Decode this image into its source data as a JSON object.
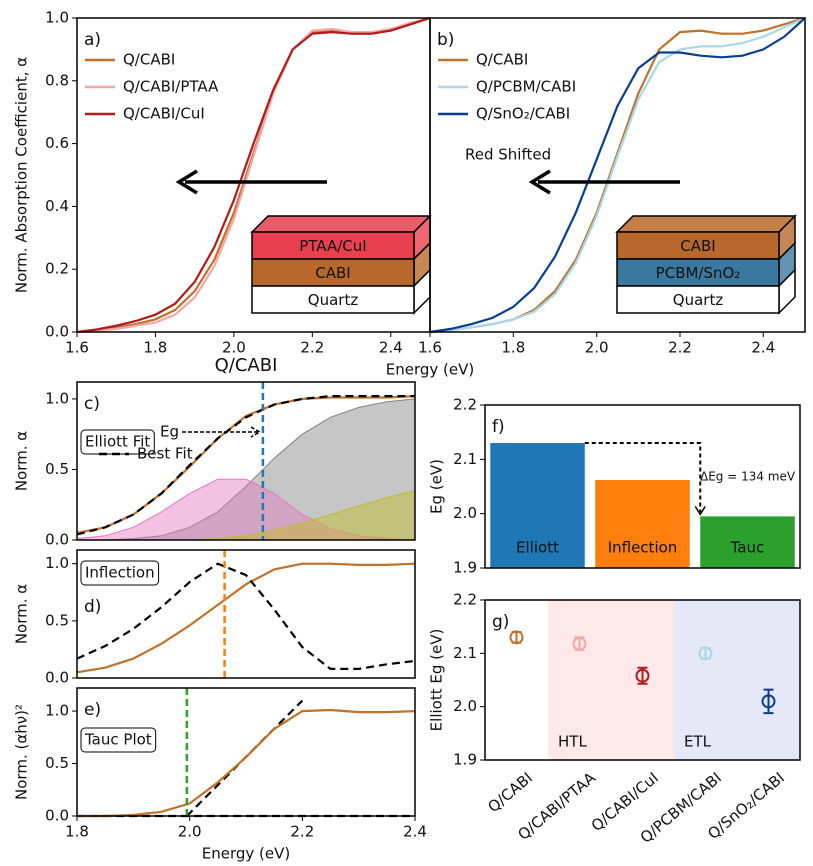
{
  "chart_data": [
    {
      "type": "line",
      "panel_label": "a)",
      "ylabel": "Norm. Absorption Coefficient, α",
      "xlabel": "Energy (eV)",
      "xlim": [
        1.6,
        2.5
      ],
      "ylim": [
        0,
        1
      ],
      "xticks": [
        1.6,
        1.8,
        {
          "value": 2,
          "label": "2.0"
        },
        2.2,
        2.4
      ],
      "yticks": [
        {
          "value": 0,
          "label": "0.0"
        },
        0.2,
        0.4,
        0.6,
        0.8,
        {
          "value": 1,
          "label": "1.0"
        }
      ],
      "legend": "upper left",
      "x": [
        1.6,
        1.65,
        1.7,
        1.75,
        1.8,
        1.85,
        1.9,
        1.95,
        2.0,
        2.05,
        2.1,
        2.15,
        2.2,
        2.25,
        2.3,
        2.35,
        2.4,
        2.45,
        2.5
      ],
      "series": [
        {
          "name": "Q/CABI",
          "color": "#c0712a",
          "values": [
            0,
            0.005,
            0.015,
            0.025,
            0.04,
            0.07,
            0.13,
            0.23,
            0.38,
            0.57,
            0.76,
            0.9,
            0.955,
            0.96,
            0.95,
            0.95,
            0.96,
            0.98,
            1.0
          ]
        },
        {
          "name": "Q/CABI/PTAA",
          "color": "#f0a8a8",
          "values": [
            0,
            0.004,
            0.01,
            0.02,
            0.03,
            0.055,
            0.11,
            0.21,
            0.36,
            0.56,
            0.76,
            0.9,
            0.96,
            0.965,
            0.955,
            0.955,
            0.965,
            0.985,
            1.0
          ]
        },
        {
          "name": "Q/CABI/CuI",
          "color": "#b21a1a",
          "values": [
            0,
            0.008,
            0.02,
            0.035,
            0.055,
            0.09,
            0.16,
            0.27,
            0.42,
            0.6,
            0.77,
            0.9,
            0.95,
            0.955,
            0.95,
            0.95,
            0.96,
            0.98,
            1.0
          ]
        }
      ],
      "inset": [
        "PTAA/CuI",
        "CABI",
        "Quartz"
      ],
      "inset_colors": [
        "#e8404f",
        "#b8682a",
        "#ffffff"
      ]
    },
    {
      "type": "line",
      "panel_label": "b)",
      "xlim": [
        1.6,
        2.5
      ],
      "ylim": [
        0,
        1
      ],
      "xticks": [
        1.6,
        1.8,
        {
          "value": 2,
          "label": "2.0"
        },
        2.2,
        2.4
      ],
      "legend": "upper left",
      "annotations": [
        "Red Shifted"
      ],
      "x": [
        1.6,
        1.65,
        1.7,
        1.75,
        1.8,
        1.85,
        1.9,
        1.95,
        2.0,
        2.05,
        2.1,
        2.15,
        2.2,
        2.25,
        2.3,
        2.35,
        2.4,
        2.45,
        2.5
      ],
      "series": [
        {
          "name": "Q/CABI",
          "color": "#c0712a",
          "values": [
            0,
            0.005,
            0.015,
            0.025,
            0.04,
            0.07,
            0.13,
            0.23,
            0.38,
            0.57,
            0.76,
            0.9,
            0.955,
            0.96,
            0.95,
            0.95,
            0.96,
            0.98,
            1.0
          ]
        },
        {
          "name": "Q/PCBM/CABI",
          "color": "#a6d8ea",
          "values": [
            0,
            0.005,
            0.015,
            0.025,
            0.04,
            0.065,
            0.12,
            0.22,
            0.37,
            0.56,
            0.74,
            0.86,
            0.9,
            0.91,
            0.91,
            0.92,
            0.94,
            0.97,
            1.0
          ]
        },
        {
          "name": "Q/SnO₂/CABI",
          "color": "#0a3d8f",
          "values": [
            0,
            0.01,
            0.025,
            0.045,
            0.08,
            0.14,
            0.24,
            0.38,
            0.55,
            0.72,
            0.84,
            0.89,
            0.89,
            0.88,
            0.875,
            0.88,
            0.9,
            0.94,
            1.0
          ]
        }
      ],
      "inset": [
        "CABI",
        "PCBM/SnO₂",
        "Quartz"
      ],
      "inset_colors": [
        "#b8682a",
        "#3b78a0",
        "#ffffff"
      ]
    },
    {
      "type": "line",
      "title": "Q/CABI",
      "panel_label": "c)",
      "ylabel": "Norm. α",
      "xlim": [
        1.8,
        2.4
      ],
      "ylim": [
        0,
        1.12
      ],
      "yticks": [
        {
          "value": 0,
          "label": "0.0"
        },
        0.5,
        {
          "value": 1,
          "label": "1.0"
        }
      ],
      "legend": "upper left",
      "annotations": [
        "Elliott Fit",
        "Eg"
      ],
      "vline": 2.13,
      "vline_color": "#1f77b4",
      "x": [
        1.8,
        1.85,
        1.9,
        1.95,
        2.0,
        2.05,
        2.1,
        2.15,
        2.2,
        2.25,
        2.3,
        2.35,
        2.4
      ],
      "series": [
        {
          "color": "#808080",
          "fill": true,
          "values": [
            0,
            0,
            0.01,
            0.03,
            0.09,
            0.2,
            0.38,
            0.58,
            0.75,
            0.87,
            0.94,
            0.98,
            1.0
          ]
        },
        {
          "color": "#e377c2",
          "fill": true,
          "values": [
            0.01,
            0.03,
            0.09,
            0.2,
            0.33,
            0.43,
            0.43,
            0.33,
            0.18,
            0.08,
            0.03,
            0.01,
            0
          ]
        },
        {
          "color": "#bcbd22",
          "fill": true,
          "values": [
            0,
            0,
            0,
            0,
            0,
            0.01,
            0.03,
            0.07,
            0.12,
            0.18,
            0.24,
            0.3,
            0.35
          ]
        },
        {
          "color": "#c0712a",
          "values": [
            0.05,
            0.09,
            0.18,
            0.33,
            0.52,
            0.72,
            0.88,
            0.96,
            1.0,
            1.01,
            1.01,
            1.01,
            1.02
          ]
        },
        {
          "name": "Best Fit",
          "color": "#000000",
          "dash": true,
          "values": [
            0.04,
            0.09,
            0.18,
            0.33,
            0.53,
            0.72,
            0.87,
            0.96,
            1.0,
            1.02,
            1.02,
            1.02,
            1.02
          ]
        }
      ]
    },
    {
      "type": "line",
      "panel_label": "d)",
      "ylabel": "Norm. α",
      "xlim": [
        1.8,
        2.4
      ],
      "ylim": [
        0,
        1.12
      ],
      "yticks": [
        {
          "value": 0,
          "label": "0.0"
        },
        0.5,
        {
          "value": 1,
          "label": "1.0"
        }
      ],
      "annotations": [
        "Inflection"
      ],
      "vline": 2.062,
      "vline_color": "#ff7f0e",
      "x": [
        1.8,
        1.85,
        1.9,
        1.95,
        2.0,
        2.05,
        2.1,
        2.15,
        2.2,
        2.25,
        2.3,
        2.35,
        2.4
      ],
      "series": [
        {
          "color": "#c0712a",
          "values": [
            0.05,
            0.09,
            0.17,
            0.3,
            0.46,
            0.64,
            0.82,
            0.95,
            1.0,
            1.0,
            0.99,
            0.99,
            1.0
          ]
        },
        {
          "color": "#000000",
          "dash": true,
          "values": [
            0.17,
            0.28,
            0.43,
            0.62,
            0.84,
            1.0,
            0.9,
            0.6,
            0.27,
            0.08,
            0.08,
            0.12,
            0.15
          ]
        }
      ]
    },
    {
      "type": "line",
      "panel_label": "e)",
      "ylabel": "Norm. (αhν)²",
      "xlabel": "Energy (eV)",
      "xlim": [
        1.8,
        2.4
      ],
      "ylim": [
        0,
        1.22
      ],
      "xticks": [
        1.8,
        {
          "value": 2,
          "label": "2.0"
        },
        2.2,
        2.4
      ],
      "yticks": [
        {
          "value": 0,
          "label": "0.0"
        },
        0.5,
        {
          "value": 1,
          "label": "1.0"
        }
      ],
      "annotations": [
        "Tauc Plot"
      ],
      "vline": 1.995,
      "vline_color": "#2ca02c",
      "x": [
        1.8,
        1.85,
        1.9,
        1.95,
        2.0,
        2.05,
        2.1,
        2.15,
        2.2,
        2.25,
        2.3,
        2.35,
        2.4
      ],
      "series": [
        {
          "color": "#000000",
          "dash": true,
          "x": [
            1.8,
            2.4
          ],
          "values": [
            0,
            0
          ]
        },
        {
          "color": "#000000",
          "dash": true,
          "x": [
            1.995,
            2.2
          ],
          "values": [
            0,
            1.1
          ]
        },
        {
          "color": "#c0712a",
          "values": [
            0,
            0,
            0.01,
            0.04,
            0.12,
            0.32,
            0.56,
            0.83,
            1.0,
            1.01,
            0.99,
            0.99,
            1.0
          ]
        }
      ]
    },
    {
      "type": "bar",
      "panel_label": "f)",
      "ylabel": "Eg (eV)",
      "ylim": [
        1.9,
        2.2
      ],
      "yticks": [
        1.9,
        {
          "value": 2,
          "label": "2.0"
        },
        2.1,
        2.2
      ],
      "categories": [
        "Elliott",
        "Inflection",
        "Tauc"
      ],
      "values": [
        2.13,
        2.062,
        1.995
      ],
      "colors": [
        "#1f77b4",
        "#ff7f0e",
        "#2ca02c"
      ],
      "annotations": [
        "ΔEg = 134 meV"
      ]
    },
    {
      "type": "scatter",
      "panel_label": "g)",
      "ylabel": "Elliott Eg (eV)",
      "ylim": [
        1.9,
        2.2
      ],
      "yticks": [
        1.9,
        {
          "value": 2,
          "label": "2.0"
        },
        2.1,
        2.2
      ],
      "categories": [
        "Q/CABI",
        "Q/CABI/PTAA",
        "Q/CABI/CuI",
        "Q/PCBM/CABI",
        "Q/SnO₂/CABI"
      ],
      "values": [
        2.13,
        2.118,
        2.058,
        2.1,
        2.01
      ],
      "errors": [
        0.01,
        0.012,
        0.015,
        0.01,
        0.022
      ],
      "colors": [
        "#c0712a",
        "#f0a8a8",
        "#b21a1a",
        "#a6d8ea",
        "#0a3d8f"
      ],
      "regions": [
        {
          "label": "HTL",
          "color": "#fde9e9"
        },
        {
          "label": "ETL",
          "color": "#e6e8f8"
        }
      ]
    }
  ]
}
